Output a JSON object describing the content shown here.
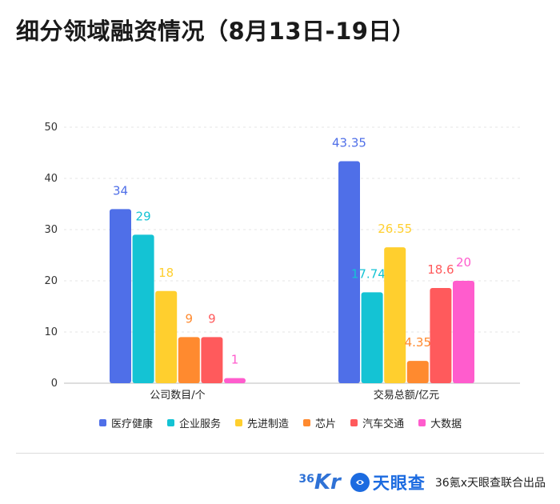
{
  "title": "细分领域融资情况（8月13日-19日）",
  "chart_data": {
    "type": "bar",
    "categories": [
      "公司数目/个",
      "交易总额/亿元"
    ],
    "series": [
      {
        "name": "医疗健康",
        "color": "#4f6fe8",
        "values": [
          34,
          43.35
        ]
      },
      {
        "name": "企业服务",
        "color": "#14c3d4",
        "values": [
          29,
          17.745
        ]
      },
      {
        "name": "先进制造",
        "color": "#ffcf2e",
        "values": [
          18,
          26.55
        ]
      },
      {
        "name": "芯片",
        "color": "#ff8a2f",
        "values": [
          9,
          4.35
        ]
      },
      {
        "name": "汽车交通",
        "color": "#ff5a5c",
        "values": [
          9,
          18.6
        ]
      },
      {
        "name": "大数据",
        "color": "#ff5ccd",
        "values": [
          1,
          20
        ]
      }
    ],
    "data_labels": [
      [
        "34",
        "29",
        "18",
        "9",
        "9",
        "1"
      ],
      [
        "43.35",
        "17.745",
        "26.55",
        "4.35",
        "18.6",
        "20"
      ]
    ],
    "yticks": [
      "0",
      "10",
      "20",
      "30",
      "40",
      "50"
    ],
    "ylim": [
      0,
      50
    ],
    "grid": true,
    "legend_position": "bottom"
  },
  "footer": {
    "logo_36kr_num": "36",
    "logo_36kr_k": "Kr",
    "logo_tianyancha": "天眼查",
    "credit": "36氪x天眼查联合出品"
  }
}
